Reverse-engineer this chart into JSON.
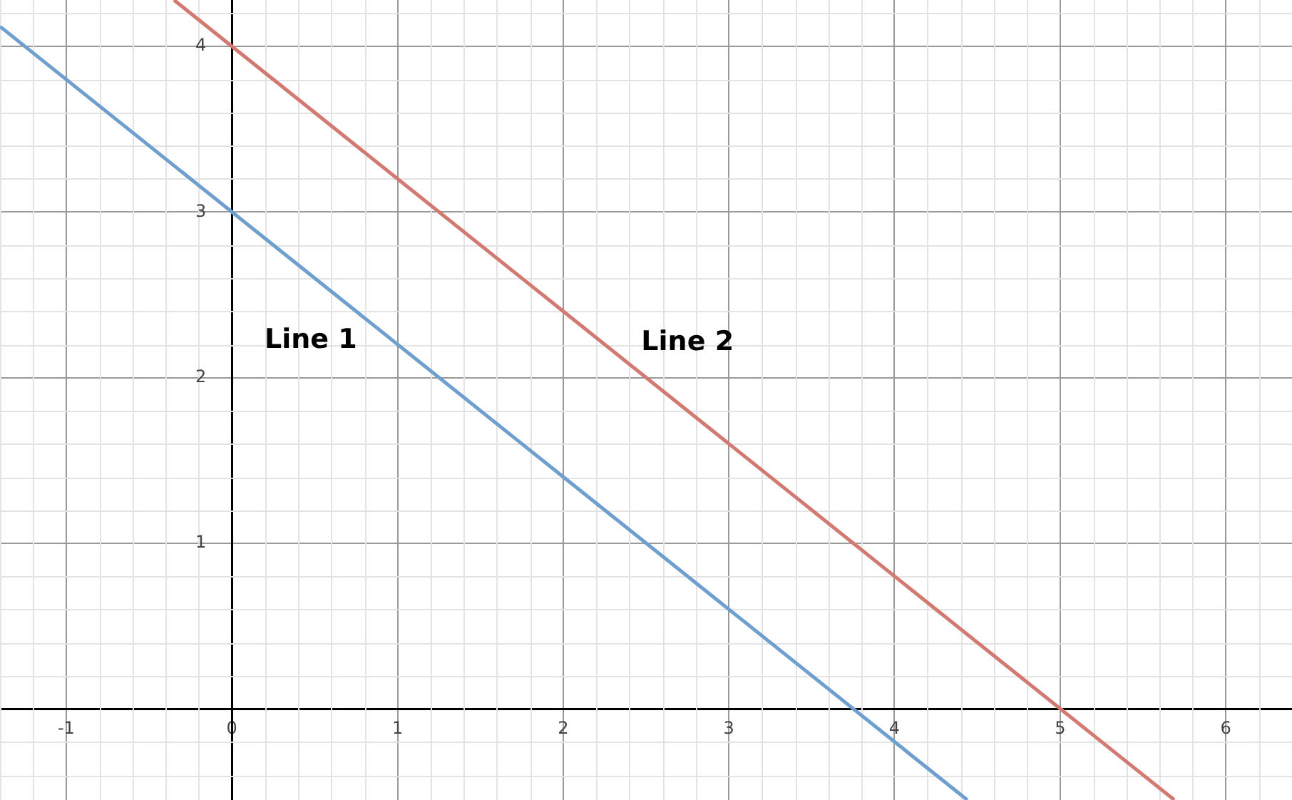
{
  "chart_data": {
    "type": "line",
    "xlim": [
      -1.4,
      6.4
    ],
    "ylim": [
      -0.55,
      4.28
    ],
    "xticks": [
      -1,
      0,
      1,
      2,
      3,
      4,
      5,
      6
    ],
    "yticks": [
      {
        "value": 0,
        "label": null
      },
      1,
      2,
      3,
      4
    ],
    "grid": true,
    "legend": false,
    "marker": "none",
    "line_style": "solid",
    "series": [
      {
        "name": "Line 1",
        "color": "#6f9fcf",
        "x": [
          -1.4,
          4.44
        ],
        "values": [
          4.12,
          -0.55
        ]
      },
      {
        "name": "Line 2",
        "color": "#d27a72",
        "x": [
          -0.35,
          5.69
        ],
        "values": [
          4.28,
          -0.55
        ]
      }
    ]
  }
}
